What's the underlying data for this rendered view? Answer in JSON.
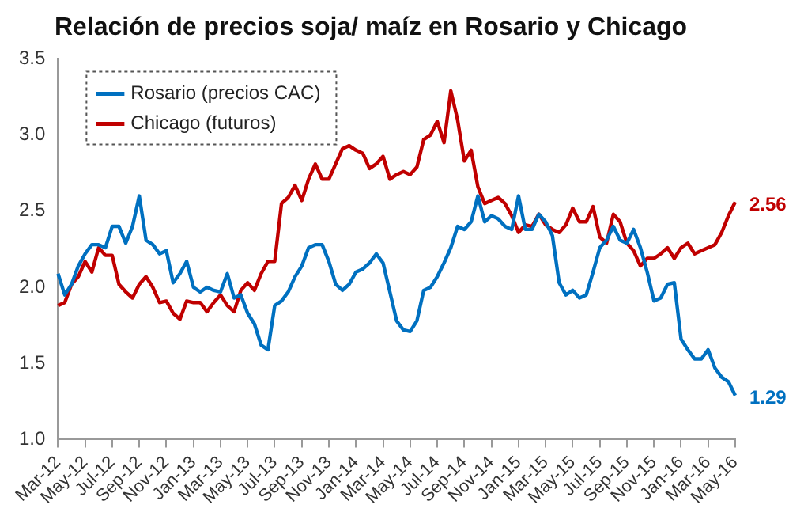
{
  "chart_data": {
    "type": "line",
    "title": "Relación de precios soja/ maíz en Rosario y Chicago",
    "categories": [
      "Mar-12",
      null,
      null,
      null,
      "May-12",
      null,
      null,
      null,
      "Jul-12",
      null,
      null,
      null,
      "Sep-12",
      null,
      null,
      null,
      "Nov-12",
      null,
      null,
      null,
      "Jan-13",
      null,
      null,
      null,
      "Mar-13",
      null,
      null,
      null,
      "May-13",
      null,
      null,
      null,
      "Jul-13",
      null,
      null,
      null,
      "Sep-13",
      null,
      null,
      null,
      "Nov-13",
      null,
      null,
      null,
      "Jan-14",
      null,
      null,
      null,
      "Mar-14",
      null,
      null,
      null,
      "May-14",
      null,
      null,
      null,
      "Jul-14",
      null,
      null,
      null,
      "Sep-14",
      null,
      null,
      null,
      "Nov-14",
      null,
      null,
      null,
      "Jan-15",
      null,
      null,
      null,
      "Mar-15",
      null,
      null,
      null,
      "May-15",
      null,
      null,
      null,
      "Jul-15",
      null,
      null,
      null,
      "Sep-15",
      null,
      null,
      null,
      "Nov-15",
      null,
      null,
      null,
      "Jan-16",
      null,
      null,
      null,
      "Mar-16",
      null,
      null,
      null,
      "May-16"
    ],
    "series": [
      {
        "name": "Rosario (precios CAC)",
        "color": "#0070c0",
        "values": [
          2.09,
          1.95,
          2.02,
          2.14,
          2.22,
          2.28,
          2.28,
          2.26,
          2.4,
          2.4,
          2.29,
          2.4,
          2.6,
          2.31,
          2.28,
          2.22,
          2.24,
          2.03,
          2.09,
          2.17,
          2.0,
          1.97,
          2.0,
          1.98,
          1.97,
          2.09,
          1.93,
          1.95,
          1.83,
          1.76,
          1.62,
          1.59,
          1.88,
          1.91,
          1.97,
          2.07,
          2.14,
          2.26,
          2.28,
          2.28,
          2.17,
          2.02,
          1.98,
          2.02,
          2.1,
          2.12,
          2.16,
          2.22,
          2.16,
          1.97,
          1.78,
          1.72,
          1.71,
          1.78,
          1.98,
          2.0,
          2.07,
          2.16,
          2.26,
          2.4,
          2.38,
          2.43,
          2.6,
          2.43,
          2.47,
          2.45,
          2.4,
          2.38,
          2.6,
          2.38,
          2.38,
          2.48,
          2.43,
          2.34,
          2.03,
          1.95,
          1.98,
          1.93,
          1.95,
          2.1,
          2.26,
          2.31,
          2.4,
          2.31,
          2.29,
          2.38,
          2.26,
          2.1,
          1.91,
          1.93,
          2.02,
          2.03,
          1.66,
          1.59,
          1.53,
          1.53,
          1.59,
          1.47,
          1.41,
          1.38,
          1.29
        ],
        "value_labels": [
          null,
          null,
          null,
          null,
          null,
          null,
          null,
          null,
          null,
          null,
          null,
          null,
          null,
          null,
          null,
          null,
          null,
          null,
          null,
          null,
          null,
          null,
          null,
          null,
          null,
          null,
          null,
          null,
          null,
          null,
          null,
          null,
          null,
          null,
          null,
          null,
          null,
          null,
          null,
          null,
          null,
          null,
          null,
          null,
          null,
          null,
          null,
          null,
          null,
          null,
          null,
          null,
          null,
          null,
          null,
          null,
          null,
          null,
          null,
          null,
          null,
          null,
          null,
          null,
          null,
          null,
          null,
          null,
          null,
          null,
          null,
          null,
          null,
          null,
          null,
          null,
          null,
          null,
          null,
          null,
          null,
          null,
          null,
          null,
          null,
          null,
          null,
          null,
          null,
          null,
          null,
          null,
          null,
          null,
          null,
          null,
          null,
          null,
          null,
          null,
          "1.29"
        ]
      },
      {
        "name": "Chicago (futuros)",
        "color": "#c00000",
        "values": [
          1.88,
          1.9,
          2.02,
          2.07,
          2.17,
          2.1,
          2.26,
          2.21,
          2.21,
          2.02,
          1.97,
          1.93,
          2.02,
          2.07,
          2.0,
          1.9,
          1.91,
          1.83,
          1.79,
          1.91,
          1.9,
          1.9,
          1.84,
          1.9,
          1.95,
          1.88,
          1.84,
          1.98,
          2.03,
          1.98,
          2.09,
          2.17,
          2.17,
          2.55,
          2.59,
          2.67,
          2.57,
          2.71,
          2.81,
          2.71,
          2.71,
          2.81,
          2.91,
          2.93,
          2.9,
          2.88,
          2.78,
          2.81,
          2.86,
          2.71,
          2.74,
          2.76,
          2.74,
          2.79,
          2.97,
          3.0,
          3.09,
          2.95,
          3.29,
          3.1,
          2.83,
          2.9,
          2.66,
          2.55,
          2.57,
          2.59,
          2.55,
          2.47,
          2.36,
          2.41,
          2.4,
          2.48,
          2.41,
          2.38,
          2.36,
          2.41,
          2.52,
          2.43,
          2.43,
          2.53,
          2.33,
          2.29,
          2.48,
          2.43,
          2.29,
          2.24,
          2.14,
          2.19,
          2.19,
          2.22,
          2.26,
          2.19,
          2.26,
          2.29,
          2.22,
          2.24,
          2.26,
          2.28,
          2.36,
          2.47,
          2.56
        ],
        "value_labels": [
          null,
          null,
          null,
          null,
          null,
          null,
          null,
          null,
          null,
          null,
          null,
          null,
          null,
          null,
          null,
          null,
          null,
          null,
          null,
          null,
          null,
          null,
          null,
          null,
          null,
          null,
          null,
          null,
          null,
          null,
          null,
          null,
          null,
          null,
          null,
          null,
          null,
          null,
          null,
          null,
          null,
          null,
          null,
          null,
          null,
          null,
          null,
          null,
          null,
          null,
          null,
          null,
          null,
          null,
          null,
          null,
          null,
          null,
          null,
          null,
          null,
          null,
          null,
          null,
          null,
          null,
          null,
          null,
          null,
          null,
          null,
          null,
          null,
          null,
          null,
          null,
          null,
          null,
          null,
          null,
          null,
          null,
          null,
          null,
          null,
          null,
          null,
          null,
          null,
          null,
          null,
          null,
          null,
          null,
          null,
          null,
          null,
          null,
          null,
          null,
          "2.56"
        ]
      }
    ],
    "ylim": [
      1,
      3.5
    ],
    "yticks": [
      {
        "value": 1,
        "label": "1.0"
      },
      {
        "value": 1.5,
        "label": "1.5"
      },
      {
        "value": 2,
        "label": "2.0"
      },
      {
        "value": 2.5,
        "label": "2.5"
      },
      {
        "value": 3,
        "label": "3.0"
      },
      {
        "value": 3.5,
        "label": "3.5"
      }
    ],
    "grid": false,
    "legend": "top left",
    "marker": "none",
    "line_style": "solid"
  }
}
